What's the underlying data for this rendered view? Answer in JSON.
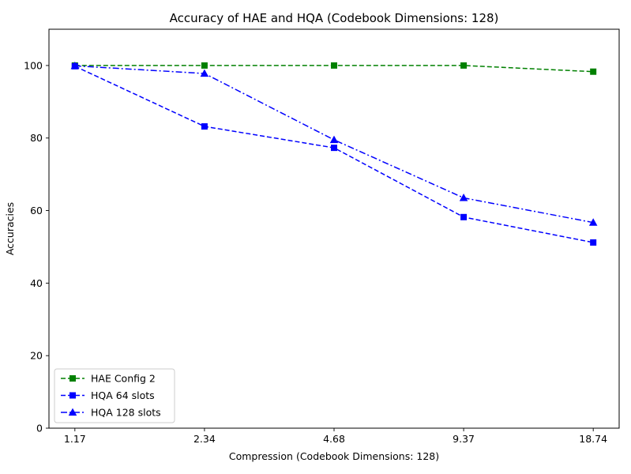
{
  "chart_data": {
    "type": "line",
    "title": "Accuracy of HAE and HQA (Codebook Dimensions: 128)",
    "xlabel": "Compression (Codebook Dimensions: 128)",
    "ylabel": "Accuracies",
    "categories": [
      "1.17",
      "2.34",
      "4.68",
      "9.37",
      "18.74"
    ],
    "ylim": [
      0,
      110
    ],
    "yticks": [
      0,
      20,
      40,
      60,
      80,
      100
    ],
    "grid": false,
    "legend_position": "lower-left",
    "series": [
      {
        "name": "HAE Config 2",
        "values": [
          100,
          100,
          100,
          100,
          98.3
        ],
        "color": "#008000",
        "linestyle": "dashed",
        "marker": "square"
      },
      {
        "name": "HQA 64 slots",
        "values": [
          99.8,
          83.2,
          77.3,
          58.2,
          51.2
        ],
        "color": "#0000ff",
        "linestyle": "dashed",
        "marker": "square"
      },
      {
        "name": "HQA 128 slots",
        "values": [
          99.9,
          97.8,
          79.5,
          63.5,
          56.7
        ],
        "color": "#0000ff",
        "linestyle": "dashdot",
        "marker": "triangle"
      }
    ]
  }
}
